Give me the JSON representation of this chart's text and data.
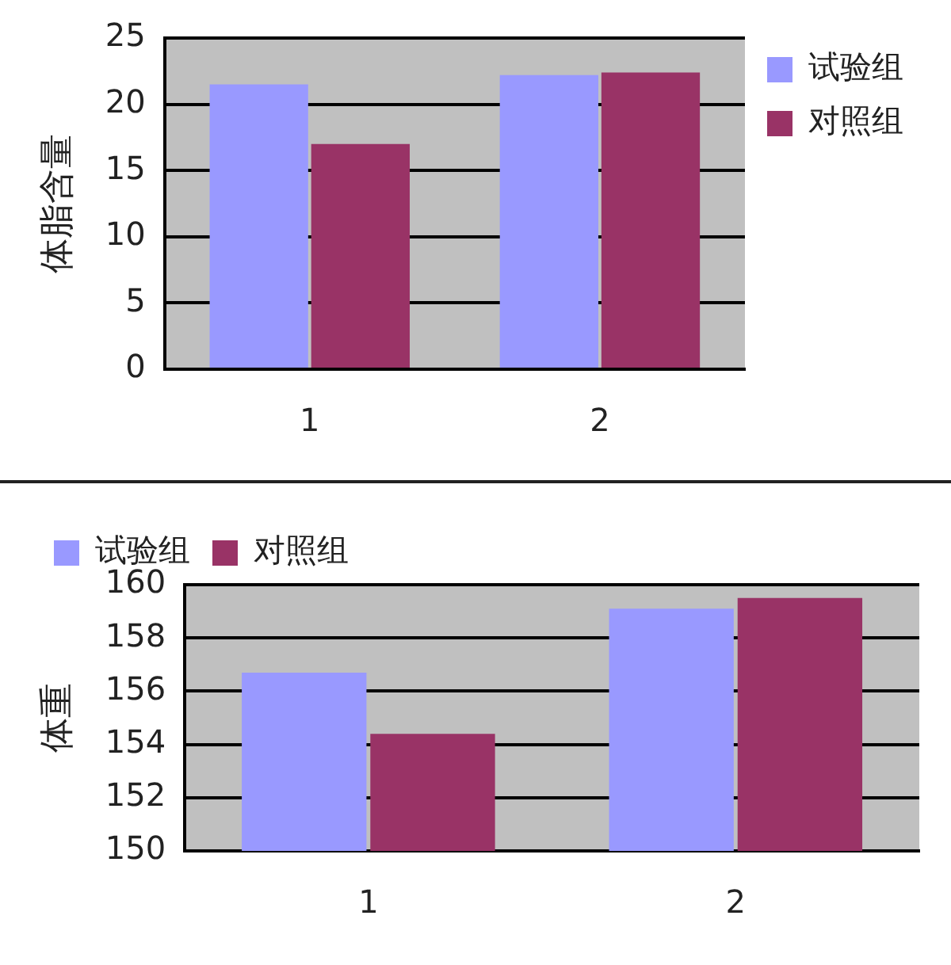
{
  "chart_data": [
    {
      "type": "bar",
      "ylabel": "体脂含量",
      "categories": [
        "1",
        "2"
      ],
      "series": [
        {
          "name": "试验组",
          "color": "#9999ff",
          "values": [
            21.5,
            22.2
          ]
        },
        {
          "name": "对照组",
          "color": "#993366",
          "values": [
            17.0,
            22.4
          ]
        }
      ],
      "ylim": [
        0,
        25
      ],
      "yticks": [
        0,
        5,
        10,
        15,
        20,
        25
      ],
      "grid": "y",
      "legend": "top right"
    },
    {
      "type": "bar",
      "ylabel": "体重",
      "categories": [
        "1",
        "2"
      ],
      "series": [
        {
          "name": "试验组",
          "color": "#9999ff",
          "values": [
            156.7,
            159.1
          ]
        },
        {
          "name": "对照组",
          "color": "#993366",
          "values": [
            154.4,
            159.5
          ]
        }
      ],
      "ylim": [
        150,
        160
      ],
      "yticks": [
        150,
        152,
        154,
        156,
        158,
        160
      ],
      "grid": "y",
      "legend": "top left"
    }
  ]
}
